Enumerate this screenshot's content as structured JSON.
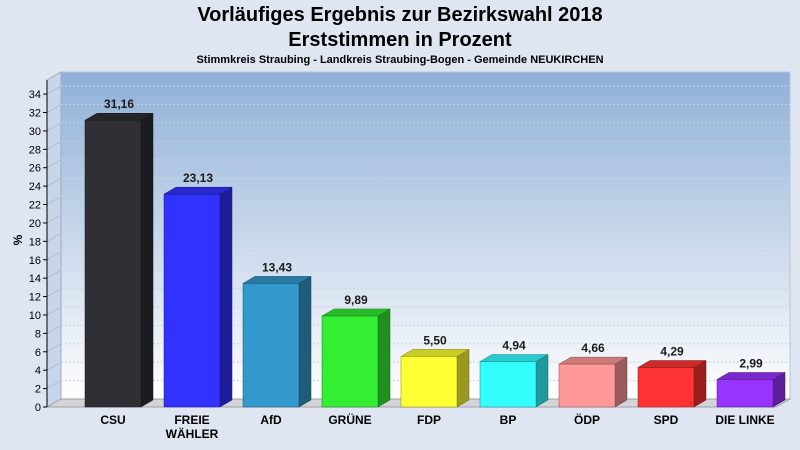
{
  "header": {
    "title_line1": "Vorläufiges Ergebnis zur Bezirkswahl 2018",
    "title_line2": "Erststimmen in Prozent",
    "subtitle": "Stimmkreis Straubing - Landkreis Straubing-Bogen - Gemeinde NEUKIRCHEN"
  },
  "chart_data": {
    "type": "bar",
    "title": "Vorläufiges Ergebnis zur Bezirkswahl 2018 Erststimmen in Prozent",
    "subtitle": "Stimmkreis Straubing - Landkreis Straubing-Bogen - Gemeinde NEUKIRCHEN",
    "xlabel": "",
    "ylabel": "%",
    "ylim": [
      0,
      35
    ],
    "yticks": [
      0,
      2,
      4,
      6,
      8,
      10,
      12,
      14,
      16,
      18,
      20,
      22,
      24,
      26,
      28,
      30,
      32,
      34
    ],
    "grid": true,
    "categories": [
      [
        "CSU"
      ],
      [
        "FREIE",
        "WÄHLER"
      ],
      [
        "AfD"
      ],
      [
        "GRÜNE"
      ],
      [
        "FDP"
      ],
      [
        "BP"
      ],
      [
        "ÖDP"
      ],
      [
        "SPD"
      ],
      [
        "DIE LINKE"
      ]
    ],
    "values": [
      31.16,
      23.13,
      13.43,
      9.89,
      5.5,
      4.94,
      4.66,
      4.29,
      2.99
    ],
    "value_labels": [
      "31,16",
      "23,13",
      "13,43",
      "9,89",
      "5,50",
      "4,94",
      "4,66",
      "4,29",
      "2,99"
    ],
    "colors": [
      "#2f2f35",
      "#3232ff",
      "#3399cc",
      "#33ee33",
      "#ffff33",
      "#33ffff",
      "#ff9999",
      "#ff3333",
      "#9933ff"
    ]
  }
}
